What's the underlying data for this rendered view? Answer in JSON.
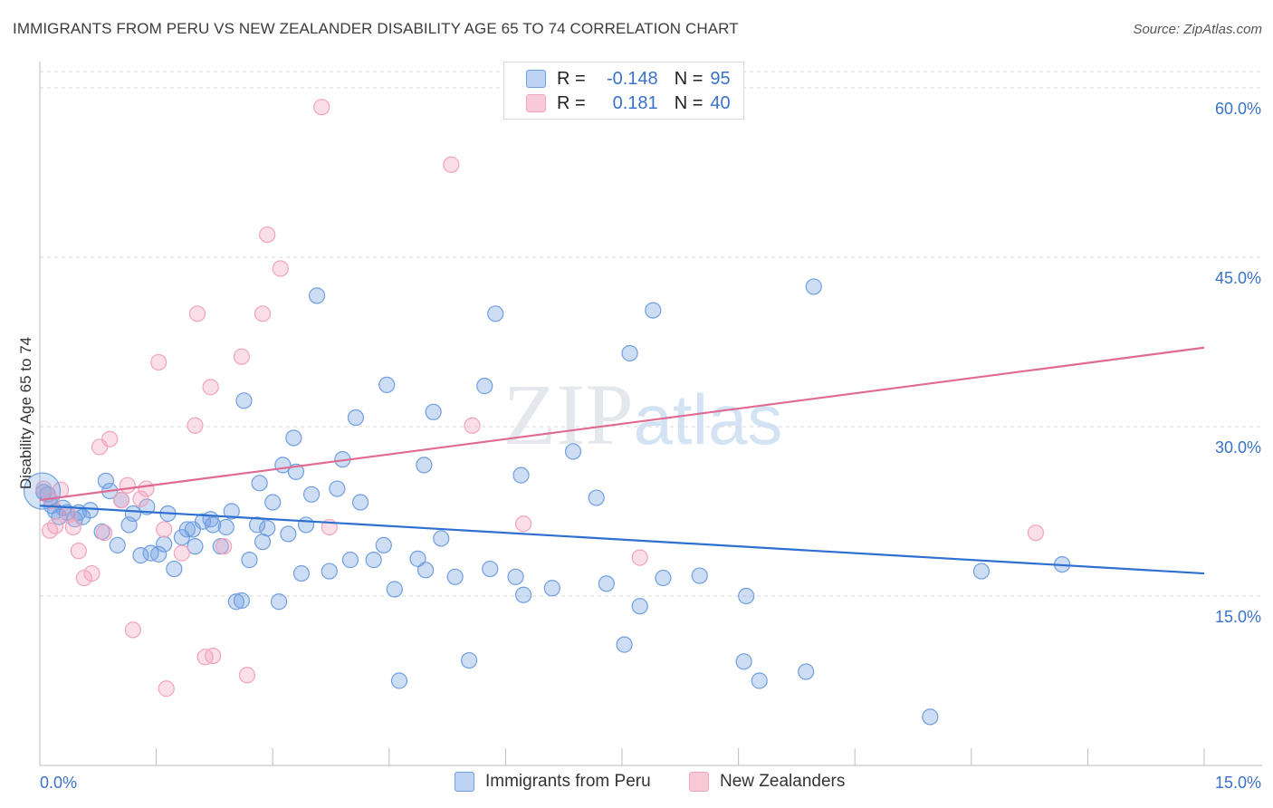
{
  "title": "IMMIGRANTS FROM PERU VS NEW ZEALANDER DISABILITY AGE 65 TO 74 CORRELATION CHART",
  "source": "Source: ZipAtlas.com",
  "watermark": "ZIPatlas",
  "legend_stats": [
    {
      "r_label": "R =",
      "r_value": "-0.148",
      "n_label": "N =",
      "n_value": "95"
    },
    {
      "r_label": "R =",
      "r_value": "0.181",
      "n_label": "N =",
      "n_value": "40"
    }
  ],
  "chart_data": {
    "type": "scatter",
    "ylabel": "Disability Age 65 to 74",
    "xlim": [
      0,
      15
    ],
    "ylim": [
      0,
      63
    ],
    "x_tick_labels": [
      "0.0%",
      "15.0%"
    ],
    "y_ticks": [
      15,
      30,
      45,
      60
    ],
    "y_tick_labels": [
      "15.0%",
      "30.0%",
      "45.0%",
      "60.0%"
    ],
    "grid": "horizontal dashed",
    "legend_placement": "bottom",
    "series": [
      {
        "name": "Immigrants from Peru",
        "color": "#6f9fe0",
        "line_color": "#2f6fd0",
        "trend": {
          "x": [
            0,
            15
          ],
          "y": [
            23.0,
            17.0
          ]
        },
        "points": [
          [
            0.1,
            24.0
          ],
          [
            0.15,
            23.0
          ],
          [
            0.2,
            22.5
          ],
          [
            0.25,
            22.0
          ],
          [
            0.3,
            22.8
          ],
          [
            0.35,
            22.4
          ],
          [
            0.5,
            22.4
          ],
          [
            0.55,
            22.0
          ],
          [
            0.65,
            22.6
          ],
          [
            0.8,
            20.7
          ],
          [
            0.85,
            25.2
          ],
          [
            0.9,
            24.3
          ],
          [
            1.0,
            19.5
          ],
          [
            1.05,
            23.5
          ],
          [
            1.15,
            21.3
          ],
          [
            1.2,
            22.3
          ],
          [
            1.3,
            18.6
          ],
          [
            1.38,
            22.9
          ],
          [
            1.43,
            18.8
          ],
          [
            1.53,
            18.7
          ],
          [
            1.6,
            19.6
          ],
          [
            1.65,
            22.3
          ],
          [
            1.73,
            17.4
          ],
          [
            1.83,
            20.2
          ],
          [
            1.9,
            20.9
          ],
          [
            1.97,
            20.9
          ],
          [
            2.0,
            19.4
          ],
          [
            2.1,
            21.6
          ],
          [
            2.2,
            21.8
          ],
          [
            2.23,
            21.3
          ],
          [
            2.33,
            19.4
          ],
          [
            2.4,
            21.1
          ],
          [
            2.47,
            22.5
          ],
          [
            2.53,
            14.5
          ],
          [
            2.6,
            14.6
          ],
          [
            2.63,
            32.3
          ],
          [
            2.7,
            18.2
          ],
          [
            2.8,
            21.3
          ],
          [
            2.83,
            25.0
          ],
          [
            2.87,
            19.8
          ],
          [
            2.93,
            21.0
          ],
          [
            3.0,
            23.3
          ],
          [
            3.08,
            14.5
          ],
          [
            3.13,
            26.6
          ],
          [
            3.2,
            20.5
          ],
          [
            3.27,
            29.0
          ],
          [
            3.3,
            26.0
          ],
          [
            3.37,
            17.0
          ],
          [
            3.43,
            21.3
          ],
          [
            3.5,
            24.0
          ],
          [
            3.57,
            41.6
          ],
          [
            3.73,
            17.2
          ],
          [
            3.83,
            24.5
          ],
          [
            3.9,
            27.1
          ],
          [
            4.0,
            18.2
          ],
          [
            4.07,
            30.8
          ],
          [
            4.13,
            23.3
          ],
          [
            4.3,
            18.2
          ],
          [
            4.43,
            19.5
          ],
          [
            4.47,
            33.7
          ],
          [
            4.57,
            15.6
          ],
          [
            4.63,
            7.5
          ],
          [
            4.87,
            18.3
          ],
          [
            4.95,
            26.6
          ],
          [
            4.97,
            17.3
          ],
          [
            5.07,
            31.3
          ],
          [
            5.17,
            20.1
          ],
          [
            5.35,
            16.7
          ],
          [
            5.53,
            9.3
          ],
          [
            5.73,
            33.6
          ],
          [
            5.8,
            17.4
          ],
          [
            5.87,
            40.0
          ],
          [
            6.13,
            16.7
          ],
          [
            6.2,
            25.7
          ],
          [
            6.23,
            15.1
          ],
          [
            6.6,
            15.7
          ],
          [
            6.87,
            27.8
          ],
          [
            7.17,
            23.7
          ],
          [
            7.3,
            16.1
          ],
          [
            7.53,
            10.7
          ],
          [
            7.6,
            36.5
          ],
          [
            7.73,
            14.1
          ],
          [
            7.9,
            40.3
          ],
          [
            8.03,
            16.6
          ],
          [
            8.5,
            16.8
          ],
          [
            9.07,
            9.2
          ],
          [
            9.1,
            15.0
          ],
          [
            9.27,
            7.5
          ],
          [
            9.87,
            8.3
          ],
          [
            9.97,
            42.4
          ],
          [
            11.47,
            4.3
          ],
          [
            12.13,
            17.2
          ],
          [
            13.17,
            17.8
          ],
          [
            0.05,
            24.2
          ],
          [
            0.45,
            21.8
          ]
        ]
      },
      {
        "name": "New Zealanders",
        "color": "#f2a3bd",
        "line_color": "#e06a92",
        "trend": {
          "x": [
            0,
            15
          ],
          "y": [
            23.5,
            37.0
          ]
        },
        "points": [
          [
            0.05,
            24.5
          ],
          [
            0.13,
            20.8
          ],
          [
            0.2,
            21.2
          ],
          [
            0.27,
            24.4
          ],
          [
            0.37,
            22.2
          ],
          [
            0.43,
            21.1
          ],
          [
            0.5,
            19.0
          ],
          [
            0.57,
            16.6
          ],
          [
            0.67,
            17.0
          ],
          [
            0.77,
            28.2
          ],
          [
            0.83,
            20.6
          ],
          [
            0.9,
            28.9
          ],
          [
            1.05,
            23.5
          ],
          [
            1.13,
            24.8
          ],
          [
            1.2,
            12.0
          ],
          [
            1.3,
            23.6
          ],
          [
            1.37,
            24.5
          ],
          [
            1.53,
            35.7
          ],
          [
            1.6,
            20.9
          ],
          [
            1.63,
            6.8
          ],
          [
            1.83,
            18.8
          ],
          [
            2.0,
            30.1
          ],
          [
            2.03,
            40.0
          ],
          [
            2.13,
            9.6
          ],
          [
            2.2,
            33.5
          ],
          [
            2.23,
            9.7
          ],
          [
            2.37,
            19.4
          ],
          [
            2.6,
            36.2
          ],
          [
            2.67,
            8.0
          ],
          [
            2.87,
            40.0
          ],
          [
            2.93,
            47.0
          ],
          [
            3.1,
            44.0
          ],
          [
            3.63,
            58.3
          ],
          [
            3.73,
            21.1
          ],
          [
            5.3,
            53.2
          ],
          [
            5.57,
            30.1
          ],
          [
            6.23,
            21.4
          ],
          [
            7.73,
            18.4
          ],
          [
            12.83,
            20.6
          ],
          [
            0.15,
            23.4
          ]
        ]
      }
    ]
  }
}
